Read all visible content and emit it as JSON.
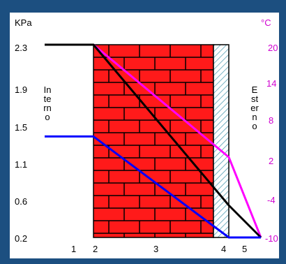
{
  "chart_data": {
    "type": "line",
    "left_axis_unit": "KPa",
    "right_axis_unit": "°C",
    "left_ticks": [
      "2.3",
      "1.9",
      "1.5",
      "1.1",
      "0.6",
      "0.2"
    ],
    "right_ticks": [
      "20",
      "14",
      "8",
      "2",
      "-4",
      "-10"
    ],
    "x_labels": [
      "1",
      "2",
      "3",
      "4",
      "5"
    ],
    "left_side_label": "Interno",
    "right_side_label": "Esterno",
    "x": [
      1,
      2,
      4,
      5
    ],
    "series": [
      {
        "color": "#ff00ff",
        "values": [
          20,
          20,
          2.5,
          -10
        ]
      },
      {
        "color": "#000000",
        "values": [
          2.3,
          2.3,
          0.55,
          0.2
        ]
      },
      {
        "color": "#0000ff",
        "values": [
          1.3,
          1.3,
          0.2,
          0.2
        ]
      }
    ],
    "colors": {
      "brick": "#ff1a1a",
      "mortar": "#000000",
      "insulation_hatch": "#4a9ab0",
      "temperature_axis": "#d000d0"
    }
  }
}
